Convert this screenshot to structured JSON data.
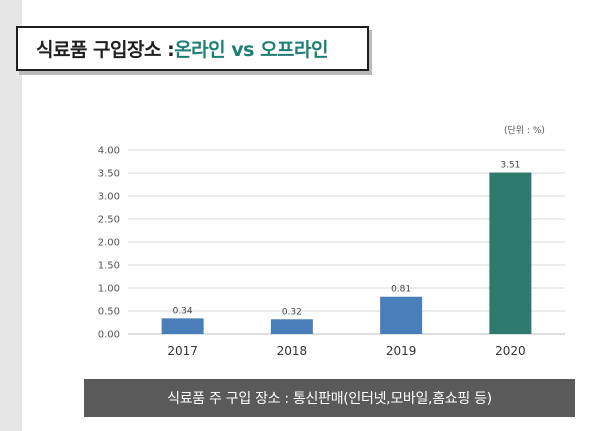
{
  "title": {
    "main": "식료품 구입장소 : ",
    "accent": "온라인 vs 오프라인"
  },
  "unit_label": "(단위 : %)",
  "caption": "식료품 주 구입 장소 : 통신판매(인터넷,모바일,홈쇼핑 등)",
  "colors": {
    "bar_default": "#4a7ebb",
    "bar_highlight": "#2f7a6e",
    "title_accent": "#1e7f74",
    "caption_bg": "#5a5a5a",
    "grid": "#d9d9d9"
  },
  "chart_data": {
    "type": "bar",
    "categories": [
      "2017",
      "2018",
      "2019",
      "2020"
    ],
    "values": [
      0.34,
      0.32,
      0.81,
      3.51
    ],
    "value_labels": [
      "0.34",
      "0.32",
      "0.81",
      "3.51"
    ],
    "y_ticks": [
      "0.00",
      "0.50",
      "1.00",
      "1.50",
      "2.00",
      "2.50",
      "3.00",
      "3.50",
      "4.00"
    ],
    "ylim": [
      0,
      4
    ],
    "grid": true,
    "highlight_index": 3,
    "title": "",
    "xlabel": "",
    "ylabel": ""
  }
}
